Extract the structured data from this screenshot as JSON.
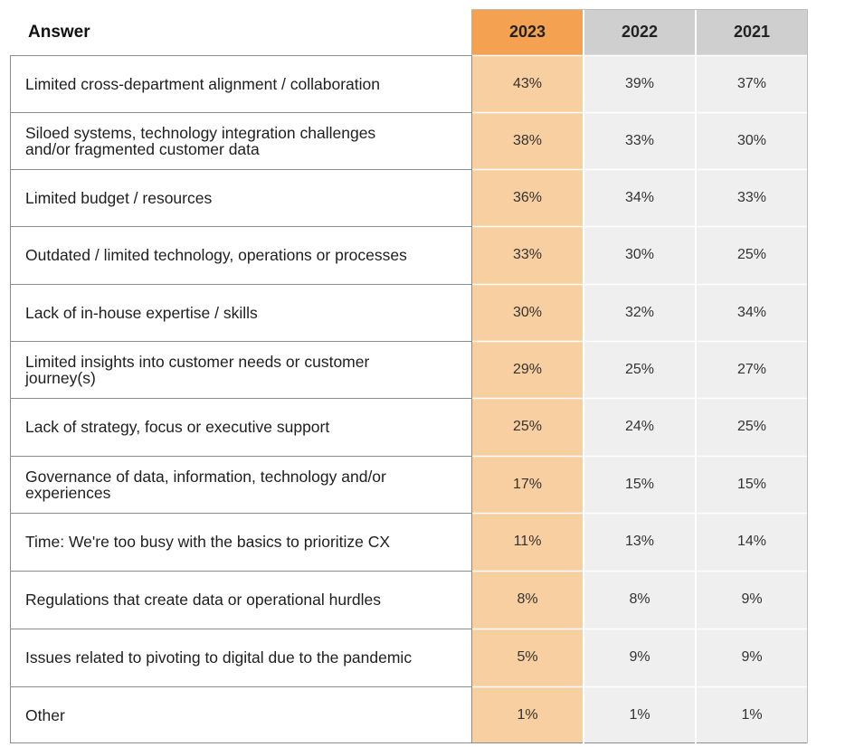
{
  "chart_data": {
    "type": "table",
    "columns": [
      "Answer",
      "2023",
      "2022",
      "2021"
    ],
    "colors": {
      "col_2023_header": "#f5a152",
      "col_2023_body": "#f8cfa1",
      "col_other_header": "#cfcfcf",
      "col_other_body": "#efefef",
      "grid": "#8c8c8c"
    },
    "rows": [
      {
        "answer": "Limited cross-department alignment / collaboration",
        "values": [
          "43%",
          "39%",
          "37%"
        ]
      },
      {
        "answer": "Siloed systems, technology integration challenges\nand/or fragmented customer data",
        "values": [
          "38%",
          "33%",
          "30%"
        ]
      },
      {
        "answer": "Limited budget / resources",
        "values": [
          "36%",
          "34%",
          "33%"
        ]
      },
      {
        "answer": "Outdated / limited technology, operations or processes",
        "values": [
          "33%",
          "30%",
          "25%"
        ]
      },
      {
        "answer": "Lack of in-house expertise / skills",
        "values": [
          "30%",
          "32%",
          "34%"
        ]
      },
      {
        "answer": "Limited insights into customer needs or customer\njourney(s)",
        "values": [
          "29%",
          "25%",
          "27%"
        ]
      },
      {
        "answer": "Lack of strategy, focus or executive support",
        "values": [
          "25%",
          "24%",
          "25%"
        ]
      },
      {
        "answer": "Governance of data, information, technology and/or\nexperiences",
        "values": [
          "17%",
          "15%",
          "15%"
        ]
      },
      {
        "answer": "Time: We're too busy with the basics to prioritize CX",
        "values": [
          "11%",
          "13%",
          "14%"
        ]
      },
      {
        "answer": "Regulations that create data or operational hurdles",
        "values": [
          "8%",
          "8%",
          "9%"
        ]
      },
      {
        "answer": "Issues related to pivoting to digital due to the pandemic",
        "values": [
          "5%",
          "9%",
          "9%"
        ]
      },
      {
        "answer": "Other",
        "values": [
          "1%",
          "1%",
          "1%"
        ]
      }
    ]
  }
}
